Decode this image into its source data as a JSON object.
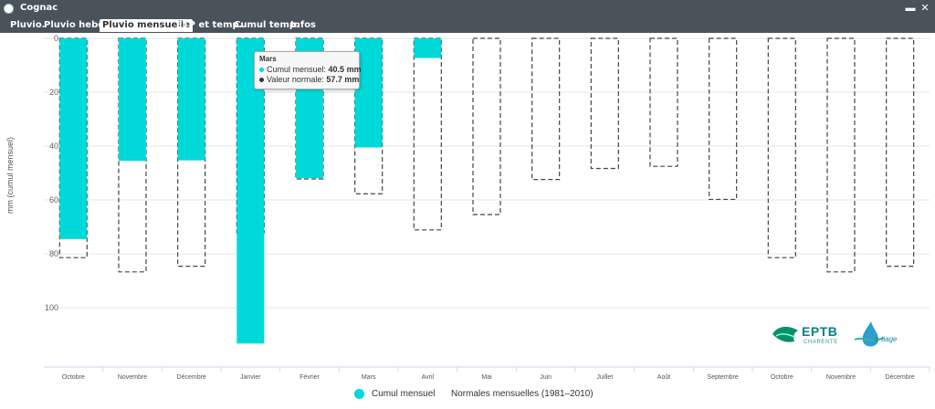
{
  "window": {
    "title": "Cognac",
    "controls": {
      "close": "✕"
    }
  },
  "tabs": [
    {
      "label": "Pluvio.",
      "active": false
    },
    {
      "label": "Pluvio hebdo",
      "active": false
    },
    {
      "label": "Pluvio mensuelle",
      "active": true
    },
    {
      "label": "ETP et temp.",
      "active": false
    },
    {
      "label": "Cumul temp.",
      "active": false
    },
    {
      "label": "Infos",
      "active": false
    }
  ],
  "tooltip": {
    "title": "Mars",
    "rows": [
      {
        "label": "Cumul mensuel:",
        "value": "40.5 mm",
        "color": "#00d9d9"
      },
      {
        "label": "Valeur normale:",
        "value": "57.7 mm",
        "color": "#333333"
      }
    ]
  },
  "legend": {
    "items": [
      {
        "label": "Cumul mensuel",
        "color": "#00d9d9"
      },
      {
        "label": "Normales mensuelles (1981–2010)",
        "color": "#ffffff"
      }
    ]
  },
  "logos": {
    "eptb_name": "EPTB",
    "eptb_sub": "CHARENTE",
    "etiage_name": "e-tiage"
  },
  "chart_data": {
    "type": "bar",
    "orientation": "inverted-y",
    "ylabel": "mm (cumul mensuel)",
    "ylim": [
      0,
      122
    ],
    "yticks": [
      0,
      20,
      40,
      60,
      80,
      100
    ],
    "categories": [
      "Octobre",
      "Novembre",
      "Décembre",
      "Janvier",
      "Février",
      "Mars",
      "Avril",
      "Mai",
      "Juin",
      "Juillet",
      "Août",
      "Septembre",
      "Octobre",
      "Novembre",
      "Décembre"
    ],
    "series": [
      {
        "name": "Cumul mensuel",
        "color": "#00d9d9",
        "values": [
          74.5,
          45.5,
          45.3,
          113.3,
          51.9,
          40.5,
          7.3,
          null,
          null,
          null,
          null,
          null,
          null,
          null,
          null
        ]
      },
      {
        "name": "Normales mensuelles (1981–2010)",
        "style": "dashed-outline",
        "values": [
          81.4,
          86.7,
          84.6,
          72.2,
          52.2,
          57.7,
          71.1,
          65.4,
          52.4,
          48.3,
          47.5,
          59.8,
          81.4,
          86.7,
          84.6
        ]
      }
    ],
    "grid": true,
    "legend_position": "bottom"
  }
}
